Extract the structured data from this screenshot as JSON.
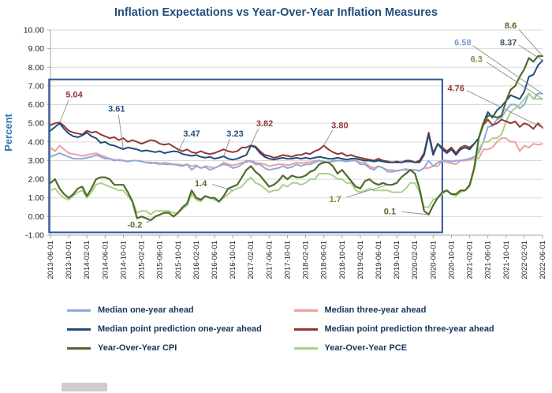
{
  "colors": {
    "title": "#1F4E79",
    "axis_label": "#2E74B5",
    "gridline": "#D9D9D9",
    "axis_line": "#A6A6A6",
    "highlight_box": "#2F5597",
    "leader_line": "#8C8C8C",
    "legend_text": "#17365D"
  },
  "chart_data": {
    "type": "line",
    "title": "Inflation Expectations vs Year-Over-Year Inflation Measures",
    "xlabel": "",
    "ylabel": "Percent",
    "ylim": [
      -1,
      10
    ],
    "ytick_step": 1,
    "ytick_labels": [
      "10.00",
      "9.00",
      "8.00",
      "7.00",
      "6.00",
      "5.00",
      "4.00",
      "3.00",
      "2.00",
      "1.00",
      "0.00",
      "-1.00"
    ],
    "grid": true,
    "legend_position": "bottom",
    "x_start": "2013-06-01",
    "x_end": "2022-06-01",
    "x_frequency": "monthly",
    "x_tick_interval": 4,
    "x_tick_labels": [
      "2013-06-01",
      "2013-10-01",
      "2014-02-01",
      "2014-06-01",
      "2014-10-01",
      "2015-02-01",
      "2015-06-01",
      "2015-10-01",
      "2016-02-01",
      "2016-06-01",
      "2016-10-01",
      "2017-02-01",
      "2017-06-01",
      "2017-10-01",
      "2018-02-01",
      "2018-06-01",
      "2018-10-01",
      "2019-02-01",
      "2019-06-01",
      "2019-10-01",
      "2020-02-01",
      "2020-06-01",
      "2020-10-01",
      "2021-02-01",
      "2021-06-01",
      "2021-10-01",
      "2022-02-01",
      "2022-06-01"
    ],
    "draw_order": [
      "m3",
      "m1",
      "pce",
      "p3",
      "p1",
      "cpi"
    ],
    "series": [
      {
        "key": "m1",
        "name": "Median one-year ahead",
        "color": "#8EAADB",
        "width": 2,
        "values": [
          3.2,
          3.3,
          3.4,
          3.3,
          3.2,
          3.1,
          3.1,
          3.1,
          3.15,
          3.2,
          3.3,
          3.2,
          3.1,
          3.1,
          3.0,
          3.05,
          3.0,
          2.95,
          3.0,
          3.0,
          2.95,
          2.9,
          2.85,
          2.9,
          2.85,
          2.8,
          2.8,
          2.8,
          2.75,
          2.7,
          2.8,
          2.5,
          2.7,
          2.6,
          2.65,
          2.5,
          2.6,
          2.7,
          2.8,
          2.75,
          2.6,
          2.65,
          2.8,
          3.0,
          2.95,
          2.8,
          2.8,
          2.6,
          2.5,
          2.55,
          2.6,
          2.7,
          2.6,
          2.65,
          2.8,
          2.7,
          2.8,
          2.8,
          2.9,
          3.0,
          2.95,
          2.9,
          3.0,
          3.0,
          3.0,
          2.95,
          3.0,
          3.0,
          2.8,
          2.8,
          2.6,
          2.5,
          2.7,
          2.6,
          2.4,
          2.4,
          2.45,
          2.5,
          2.5,
          2.5,
          2.5,
          2.45,
          2.6,
          3.0,
          2.7,
          2.9,
          3.0,
          3.0,
          2.95,
          3.0,
          3.0,
          3.05,
          3.1,
          3.2,
          3.4,
          4.0,
          4.8,
          4.85,
          5.2,
          5.3,
          5.7,
          6.0,
          6.0,
          5.8,
          6.0,
          6.6,
          6.3,
          6.6,
          6.58
        ]
      },
      {
        "key": "m3",
        "name": "Median three-year ahead",
        "color": "#EDA09F",
        "width": 2,
        "values": [
          3.7,
          3.5,
          3.8,
          3.6,
          3.4,
          3.35,
          3.3,
          3.25,
          3.3,
          3.35,
          3.4,
          3.3,
          3.2,
          3.1,
          3.05,
          3.0,
          3.0,
          2.95,
          3.0,
          3.0,
          2.95,
          2.9,
          2.9,
          2.85,
          2.8,
          2.9,
          2.85,
          2.8,
          2.8,
          2.75,
          2.8,
          2.7,
          2.75,
          2.6,
          2.7,
          2.65,
          2.6,
          2.7,
          2.9,
          2.8,
          2.75,
          2.8,
          2.9,
          2.9,
          3.0,
          2.9,
          2.85,
          2.8,
          2.7,
          2.75,
          2.8,
          2.8,
          2.75,
          2.8,
          2.9,
          2.85,
          2.9,
          2.9,
          3.0,
          3.0,
          2.9,
          2.9,
          2.95,
          3.0,
          3.0,
          2.95,
          3.0,
          3.0,
          2.9,
          2.9,
          2.7,
          2.6,
          2.7,
          2.6,
          2.5,
          2.5,
          2.45,
          2.5,
          2.55,
          2.5,
          2.5,
          2.45,
          2.6,
          2.6,
          2.7,
          2.7,
          3.0,
          2.9,
          2.85,
          2.8,
          3.0,
          3.0,
          3.05,
          3.1,
          3.1,
          3.6,
          3.6,
          3.7,
          4.0,
          4.2,
          4.2,
          4.0,
          4.0,
          3.5,
          3.8,
          3.7,
          3.9,
          3.85,
          3.9
        ]
      },
      {
        "key": "p1",
        "name": "Median point prediction one-year ahead",
        "color": "#1F4E79",
        "width": 2,
        "values": [
          4.6,
          4.8,
          5.0,
          4.7,
          4.45,
          4.3,
          4.25,
          4.35,
          4.5,
          4.3,
          4.2,
          3.95,
          4.0,
          3.85,
          3.8,
          3.7,
          3.61,
          3.7,
          3.65,
          3.6,
          3.5,
          3.55,
          3.5,
          3.45,
          3.5,
          3.4,
          3.45,
          3.5,
          3.47,
          3.35,
          3.3,
          3.25,
          3.3,
          3.2,
          3.15,
          3.2,
          3.1,
          3.15,
          3.23,
          3.1,
          3.05,
          3.1,
          3.2,
          3.3,
          3.8,
          3.7,
          3.4,
          3.2,
          3.1,
          3.05,
          3.1,
          3.15,
          3.1,
          3.1,
          3.15,
          3.1,
          3.15,
          3.1,
          3.15,
          3.2,
          3.15,
          3.1,
          3.1,
          3.15,
          3.1,
          3.05,
          3.1,
          3.1,
          3.05,
          3.0,
          3.0,
          2.95,
          3.0,
          2.95,
          2.9,
          2.9,
          2.9,
          2.9,
          2.95,
          2.95,
          2.9,
          2.9,
          3.3,
          4.4,
          3.3,
          3.9,
          3.6,
          3.4,
          3.6,
          3.3,
          3.6,
          3.7,
          3.6,
          3.9,
          4.2,
          5.0,
          5.6,
          5.3,
          5.7,
          5.9,
          6.2,
          6.5,
          6.4,
          6.3,
          6.7,
          7.5,
          7.6,
          8.1,
          8.37
        ]
      },
      {
        "key": "p3",
        "name": "Median point prediction three-year ahead",
        "color": "#943634",
        "width": 2,
        "values": [
          4.9,
          5.0,
          5.04,
          4.85,
          4.6,
          4.5,
          4.45,
          4.4,
          4.6,
          4.5,
          4.55,
          4.4,
          4.3,
          4.2,
          4.25,
          4.1,
          4.2,
          4.0,
          4.1,
          4.0,
          3.9,
          4.0,
          4.1,
          4.05,
          3.9,
          3.85,
          3.9,
          3.75,
          3.6,
          3.5,
          3.6,
          3.45,
          3.4,
          3.5,
          3.4,
          3.35,
          3.4,
          3.5,
          3.6,
          3.5,
          3.45,
          3.5,
          3.7,
          3.7,
          3.82,
          3.75,
          3.5,
          3.3,
          3.25,
          3.15,
          3.2,
          3.3,
          3.25,
          3.2,
          3.3,
          3.3,
          3.4,
          3.35,
          3.5,
          3.6,
          3.8,
          3.6,
          3.45,
          3.35,
          3.4,
          3.25,
          3.3,
          3.2,
          3.15,
          3.1,
          3.05,
          3.0,
          3.1,
          3.0,
          2.95,
          2.9,
          2.95,
          2.9,
          3.0,
          3.0,
          2.9,
          3.0,
          3.4,
          4.5,
          3.4,
          3.9,
          3.7,
          3.5,
          3.7,
          3.4,
          3.7,
          3.8,
          3.7,
          3.9,
          4.2,
          4.9,
          5.2,
          4.9,
          5.0,
          5.2,
          5.1,
          5.0,
          5.1,
          4.8,
          5.0,
          4.9,
          4.7,
          5.0,
          4.76
        ]
      },
      {
        "key": "cpi",
        "name": "Year-Over-Year CPI",
        "color": "#4F6B2B",
        "width": 2.2,
        "values": [
          1.8,
          2.0,
          1.5,
          1.2,
          1.0,
          1.2,
          1.5,
          1.6,
          1.1,
          1.5,
          2.0,
          2.1,
          2.1,
          2.0,
          1.7,
          1.7,
          1.7,
          1.3,
          0.8,
          -0.1,
          0.0,
          -0.1,
          -0.2,
          0.0,
          0.1,
          0.2,
          0.2,
          0.0,
          0.2,
          0.5,
          0.7,
          1.4,
          1.0,
          0.9,
          1.1,
          1.0,
          1.0,
          0.8,
          1.1,
          1.5,
          1.6,
          1.7,
          2.1,
          2.5,
          2.7,
          2.4,
          2.2,
          1.9,
          1.6,
          1.7,
          1.9,
          2.2,
          2.0,
          2.2,
          2.1,
          2.1,
          2.2,
          2.4,
          2.5,
          2.8,
          2.9,
          2.9,
          2.7,
          2.3,
          2.5,
          2.2,
          1.9,
          1.6,
          1.5,
          1.9,
          2.0,
          1.8,
          1.7,
          1.8,
          1.7,
          1.7,
          1.8,
          2.1,
          2.3,
          2.5,
          2.3,
          1.5,
          0.3,
          0.1,
          0.6,
          1.0,
          1.3,
          1.4,
          1.2,
          1.2,
          1.4,
          1.4,
          1.7,
          2.6,
          4.2,
          5.0,
          5.4,
          5.4,
          5.3,
          5.4,
          6.2,
          6.8,
          7.0,
          7.5,
          7.9,
          8.5,
          8.3,
          8.6,
          8.6
        ]
      },
      {
        "key": "pce",
        "name": "Year-Over-Year PCE",
        "color": "#A9D18E",
        "width": 2,
        "values": [
          1.4,
          1.5,
          1.2,
          1.0,
          0.9,
          1.1,
          1.3,
          1.4,
          1.0,
          1.3,
          1.7,
          1.8,
          1.7,
          1.6,
          1.5,
          1.4,
          1.4,
          1.1,
          0.8,
          0.2,
          0.3,
          0.3,
          0.1,
          0.3,
          0.3,
          0.3,
          0.3,
          0.2,
          0.2,
          0.4,
          0.6,
          1.2,
          0.9,
          0.8,
          1.1,
          1.0,
          0.9,
          0.8,
          1.0,
          1.2,
          1.4,
          1.5,
          1.6,
          1.9,
          2.1,
          1.8,
          1.7,
          1.5,
          1.3,
          1.4,
          1.4,
          1.7,
          1.6,
          1.8,
          1.8,
          1.7,
          1.8,
          2.0,
          2.0,
          2.3,
          2.3,
          2.3,
          2.2,
          2.0,
          2.0,
          1.8,
          1.8,
          1.4,
          1.3,
          1.4,
          1.5,
          1.4,
          1.4,
          1.4,
          1.4,
          1.3,
          1.3,
          1.3,
          1.5,
          1.8,
          1.8,
          1.3,
          0.5,
          0.5,
          0.9,
          1.0,
          1.2,
          1.4,
          1.2,
          1.1,
          1.3,
          1.4,
          1.6,
          2.5,
          3.6,
          4.0,
          4.0,
          4.2,
          4.2,
          4.4,
          5.1,
          5.6,
          5.8,
          6.0,
          6.3,
          6.6,
          6.3,
          6.3,
          6.3
        ]
      }
    ],
    "annotations": [
      {
        "text": "5.04",
        "color": "#943634",
        "series": "p3",
        "target_index": 2,
        "label_pos": [
          5.2,
          6.55
        ]
      },
      {
        "text": "3.61",
        "color": "#1F4E79",
        "series": "p1",
        "target_index": 16,
        "label_pos": [
          14.5,
          5.8
        ]
      },
      {
        "text": "3.47",
        "color": "#1F4E79",
        "series": "p1",
        "target_index": 28,
        "label_pos": [
          31,
          4.45
        ]
      },
      {
        "text": "3.23",
        "color": "#1F4E79",
        "series": "p1",
        "target_index": 38,
        "label_pos": [
          40.5,
          4.45
        ]
      },
      {
        "text": "3.82",
        "color": "#943634",
        "series": "p3",
        "target_index": 44,
        "label_pos": [
          47,
          5.0
        ]
      },
      {
        "text": "3.80",
        "color": "#943634",
        "series": "p3",
        "target_index": 60,
        "label_pos": [
          63.5,
          4.9
        ]
      },
      {
        "text": "1.4",
        "color": "#4F6B2B",
        "series": "pce",
        "target_index": 40,
        "label_pos": [
          33,
          1.8
        ]
      },
      {
        "text": "-0.2",
        "color": "#4F6B2B",
        "series": "cpi",
        "target_index": 22,
        "label_pos": [
          18.5,
          -0.42
        ]
      },
      {
        "text": "1.7",
        "color": "#76933C",
        "series": "cpi",
        "target_index": 74,
        "label_pos": [
          62.5,
          0.95
        ]
      },
      {
        "text": "0.1",
        "color": "#4F6B2B",
        "series": "cpi",
        "target_index": 83,
        "label_pos": [
          74.5,
          0.28
        ]
      },
      {
        "text": "4.76",
        "color": "#943634",
        "series": "p3",
        "target_index": 108,
        "label_pos": [
          89,
          6.9
        ]
      },
      {
        "text": "6.58",
        "color": "#7C9CD6",
        "series": "m1",
        "target_index": 108,
        "label_pos": [
          90.5,
          9.35
        ]
      },
      {
        "text": "6.3",
        "color": "#76933C",
        "series": "pce",
        "target_index": 108,
        "label_pos": [
          93.5,
          8.45
        ]
      },
      {
        "text": "8.37",
        "color": "#44546A",
        "series": "p1",
        "target_index": 108,
        "label_pos": [
          100.5,
          9.35
        ]
      },
      {
        "text": "8.6",
        "color": "#4F6B2B",
        "series": "cpi",
        "target_index": 108,
        "label_pos": [
          101,
          10.25
        ]
      }
    ],
    "highlight_box": {
      "x0_index": -0.3,
      "x1_index": 86,
      "y0": -0.85,
      "y1": 7.35,
      "color": "#2F5597",
      "stroke_width": 2
    }
  }
}
